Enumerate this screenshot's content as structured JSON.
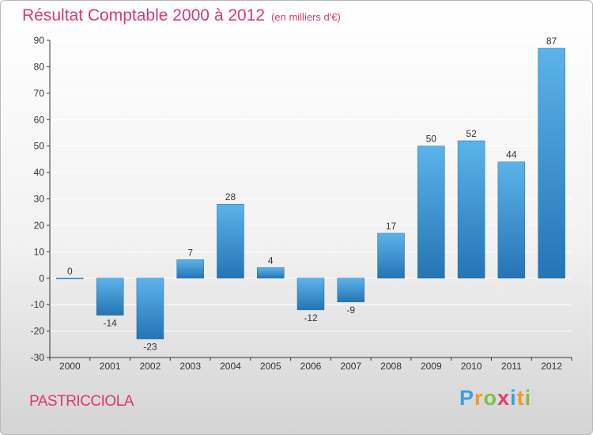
{
  "header": {
    "title": "Résultat Comptable 2000 à 2012",
    "unit": "(en milliers d'€)"
  },
  "footer": {
    "commune": "PASTRICCIOLA",
    "logo": "Proxiti",
    "logo_letters": [
      "P",
      "r",
      "o",
      "x",
      "i",
      "t",
      "i"
    ],
    "logo_colors": [
      "#3aa0e0",
      "#f29a1b",
      "#7cc242",
      "#e83b6d",
      "#3aa0e0",
      "#f29a1b",
      "#7cc242"
    ]
  },
  "colors": {
    "title": "#d93a6c",
    "bar_top": "#5cb3ea",
    "bar_bottom": "#2574b5",
    "axis": "#333333",
    "grid": "#ffffff"
  },
  "chart_data": {
    "type": "bar",
    "title": "Résultat Comptable 2000 à 2012",
    "subtitle": "(en milliers d'€)",
    "xlabel": "",
    "ylabel": "",
    "categories": [
      "2000",
      "2001",
      "2002",
      "2003",
      "2004",
      "2005",
      "2006",
      "2007",
      "2008",
      "2009",
      "2010",
      "2011",
      "2012"
    ],
    "values": [
      0,
      -14,
      -23,
      7,
      28,
      4,
      -12,
      -9,
      17,
      50,
      52,
      44,
      87
    ],
    "value_labels": [
      "0",
      "-14",
      "-23",
      "7",
      "28",
      "4",
      "-12",
      "-9",
      "17",
      "50",
      "52",
      "44",
      "87"
    ],
    "ylim": [
      -30,
      90
    ],
    "yticks": [
      -30,
      -20,
      -10,
      0,
      10,
      20,
      30,
      40,
      50,
      60,
      70,
      80,
      90
    ],
    "ytick_labels": [
      "-30",
      "-20",
      "-10",
      "0",
      "10",
      "20",
      "30",
      "40",
      "50",
      "60",
      "70",
      "80",
      "90"
    ],
    "grid": true
  }
}
